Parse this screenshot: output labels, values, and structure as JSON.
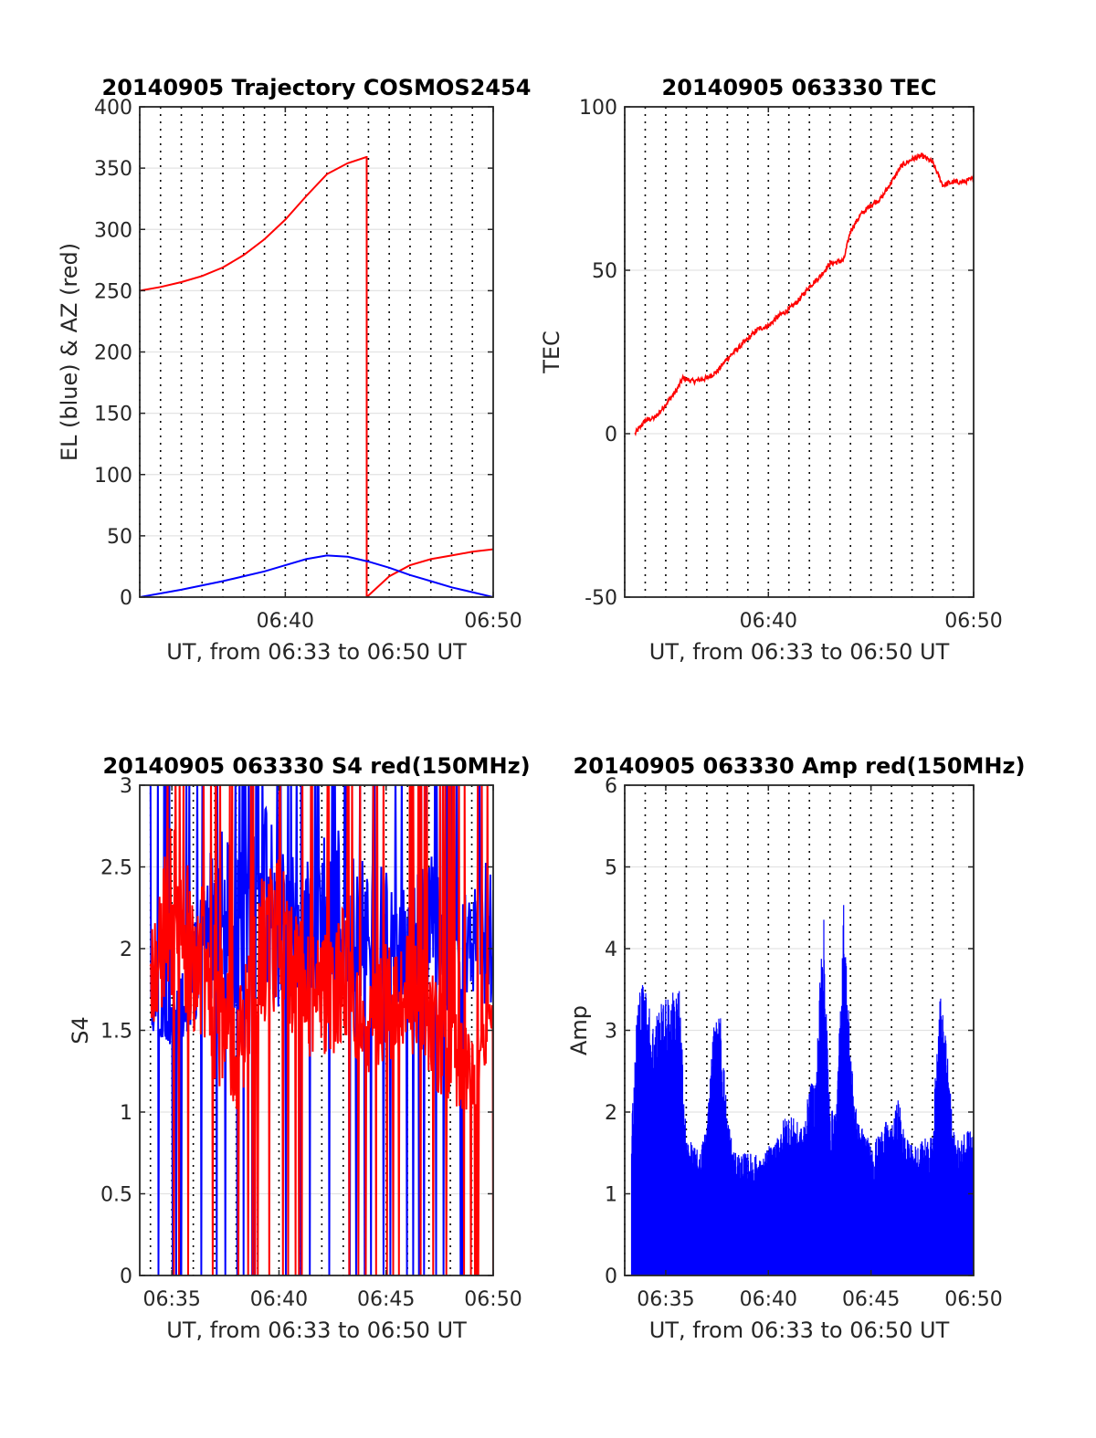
{
  "chart_data": [
    {
      "type": "line",
      "title": "20140905 Trajectory COSMOS2454",
      "xlabel": "UT, from 06:33 to 06:50 UT",
      "ylabel": "EL (blue) & AZ (red)",
      "xlim": [
        "06:33",
        "06:50"
      ],
      "ylim": [
        0,
        400
      ],
      "xticks": [
        "06:40",
        "06:50"
      ],
      "yticks": [
        0,
        50,
        100,
        150,
        200,
        250,
        300,
        350,
        400
      ],
      "grid": true,
      "series": [
        {
          "color": "#ff0000",
          "x": [
            "06:33",
            "06:34",
            "06:35",
            "06:36",
            "06:37",
            "06:38",
            "06:39",
            "06:40",
            "06:41",
            "06:42",
            "06:43",
            "06:43:54",
            "06:43:55",
            "06:45",
            "06:46",
            "06:47",
            "06:48",
            "06:49",
            "06:50"
          ],
          "y": [
            250,
            253,
            257,
            262,
            269,
            279,
            292,
            308,
            327,
            345,
            354,
            359,
            0,
            17,
            26,
            31,
            34,
            37,
            39
          ]
        },
        {
          "color": "#0000ff",
          "x": [
            "06:33",
            "06:35",
            "06:37",
            "06:39",
            "06:40",
            "06:41",
            "06:42",
            "06:43",
            "06:44",
            "06:45",
            "06:46",
            "06:47",
            "06:48",
            "06:49",
            "06:50"
          ],
          "y": [
            0,
            6,
            13,
            21,
            26,
            31,
            34,
            33,
            29,
            24,
            18,
            13,
            8,
            4,
            0
          ]
        }
      ]
    },
    {
      "type": "line",
      "title": "20140905 063330 TEC",
      "xlabel": "UT, from 06:33 to 06:50 UT",
      "ylabel": "TEC",
      "xlim": [
        "06:33",
        "06:50"
      ],
      "ylim": [
        -50,
        100
      ],
      "xticks": [
        "06:40",
        "06:50"
      ],
      "yticks": [
        -50,
        0,
        50,
        100
      ],
      "grid": true,
      "series": [
        {
          "color": "#ff0000",
          "x": [
            "06:33:30",
            "06:34",
            "06:34:30",
            "06:35",
            "06:35:30",
            "06:35:50",
            "06:36:20",
            "06:37",
            "06:37:30",
            "06:38",
            "06:38:30",
            "06:39",
            "06:39:30",
            "06:40",
            "06:40:30",
            "06:41",
            "06:41:30",
            "06:42",
            "06:42:30",
            "06:43",
            "06:43:40",
            "06:44",
            "06:44:30",
            "06:45",
            "06:45:30",
            "06:46",
            "06:46:30",
            "06:47",
            "06:47:30",
            "06:48",
            "06:48:30",
            "06:49",
            "06:49:30",
            "06:50"
          ],
          "y": [
            0,
            4,
            5,
            9,
            13,
            17,
            16,
            17,
            19,
            23,
            26,
            29,
            32,
            33,
            36,
            38,
            41,
            45,
            48,
            52,
            53,
            62,
            67,
            70,
            72,
            77,
            82,
            84,
            85,
            83,
            76,
            77,
            77,
            78
          ]
        }
      ]
    },
    {
      "type": "line",
      "title": "20140905 063330 S4 red(150MHz)",
      "xlabel": "UT, from 06:33 to 06:50 UT",
      "ylabel": "S4",
      "xlim": [
        "06:33:30",
        "06:50"
      ],
      "ylim": [
        0,
        3
      ],
      "xticks": [
        "06:35",
        "06:40",
        "06:45",
        "06:50"
      ],
      "yticks": [
        0,
        0.5,
        1,
        1.5,
        2,
        2.5,
        3
      ],
      "grid": true,
      "series": [
        {
          "color": "#0000ff",
          "x": [
            "06:34",
            "06:35",
            "06:36",
            "06:37",
            "06:38",
            "06:39",
            "06:40",
            "06:41",
            "06:42",
            "06:43",
            "06:44",
            "06:45",
            "06:46",
            "06:47",
            "06:48",
            "06:49",
            "06:50"
          ],
          "y": [
            1.8,
            1.6,
            2.0,
            2.6,
            2.4,
            2.7,
            2.5,
            2.3,
            2.5,
            2.6,
            2.4,
            2.3,
            2.2,
            2.4,
            2.3,
            2.2,
            2.5
          ],
          "lower": [
            1.5,
            1.4,
            1.5,
            1.7,
            1.6,
            1.7,
            1.6,
            1.6,
            1.7,
            1.7,
            1.6,
            1.6,
            1.6,
            1.7,
            1.6,
            1.7,
            1.6
          ]
        },
        {
          "color": "#ff0000",
          "x": [
            "06:34",
            "06:35",
            "06:36",
            "06:37",
            "06:38",
            "06:39",
            "06:40",
            "06:41",
            "06:42",
            "06:43",
            "06:44",
            "06:45",
            "06:46",
            "06:47",
            "06:48",
            "06:49",
            "06:50"
          ],
          "y": [
            2.0,
            2.6,
            2.3,
            2.0,
            1.5,
            2.2,
            2.4,
            2.0,
            1.9,
            2.1,
            1.6,
            1.9,
            2.0,
            1.8,
            1.5,
            1.4,
            1.9
          ],
          "lower": [
            1.5,
            1.7,
            1.5,
            1.2,
            1.0,
            1.4,
            1.6,
            1.3,
            1.3,
            1.4,
            1.2,
            1.3,
            1.4,
            1.2,
            1.0,
            0.9,
            1.5
          ]
        }
      ]
    },
    {
      "type": "line",
      "title": "20140905 063330 Amp red(150MHz)",
      "xlabel": "UT, from 06:33 to 06:50 UT",
      "ylabel": "Amp",
      "xlim": [
        "06:33",
        "06:50"
      ],
      "ylim": [
        0,
        6
      ],
      "xticks": [
        "06:35",
        "06:40",
        "06:45",
        "06:50"
      ],
      "yticks": [
        0,
        1,
        2,
        3,
        4,
        5,
        6
      ],
      "grid": true,
      "series": [
        {
          "color": "#0000ff",
          "x": [
            "06:33:20",
            "06:33:40",
            "06:34",
            "06:34:20",
            "06:34:40",
            "06:35",
            "06:35:20",
            "06:35:40",
            "06:36",
            "06:36:20",
            "06:36:40",
            "06:37",
            "06:37:20",
            "06:37:40",
            "06:38",
            "06:38:20",
            "06:38:40",
            "06:39",
            "06:39:20",
            "06:39:40",
            "06:40",
            "06:40:20",
            "06:40:40",
            "06:41",
            "06:41:20",
            "06:41:40",
            "06:42",
            "06:42:20",
            "06:42:40",
            "06:43",
            "06:43:20",
            "06:43:40",
            "06:44",
            "06:44:20",
            "06:44:40",
            "06:45",
            "06:45:20",
            "06:45:40",
            "06:46",
            "06:46:20",
            "06:46:40",
            "06:47",
            "06:47:20",
            "06:47:40",
            "06:48",
            "06:48:20",
            "06:48:40",
            "06:49",
            "06:49:20",
            "06:49:40",
            "06:50"
          ],
          "y": [
            1.9,
            3.6,
            3.6,
            3.1,
            3.3,
            3.4,
            3.5,
            3.5,
            1.7,
            1.6,
            1.5,
            1.9,
            3.1,
            3.2,
            2.0,
            1.5,
            1.5,
            1.5,
            1.5,
            1.4,
            1.6,
            1.6,
            1.9,
            2.0,
            1.9,
            1.8,
            2.3,
            2.5,
            4.65,
            2.0,
            2.1,
            4.6,
            2.8,
            1.9,
            1.8,
            1.6,
            1.7,
            1.9,
            1.8,
            2.2,
            1.7,
            1.6,
            1.6,
            1.7,
            1.7,
            3.55,
            2.9,
            1.8,
            1.6,
            1.9,
            1.7
          ]
        }
      ]
    }
  ]
}
